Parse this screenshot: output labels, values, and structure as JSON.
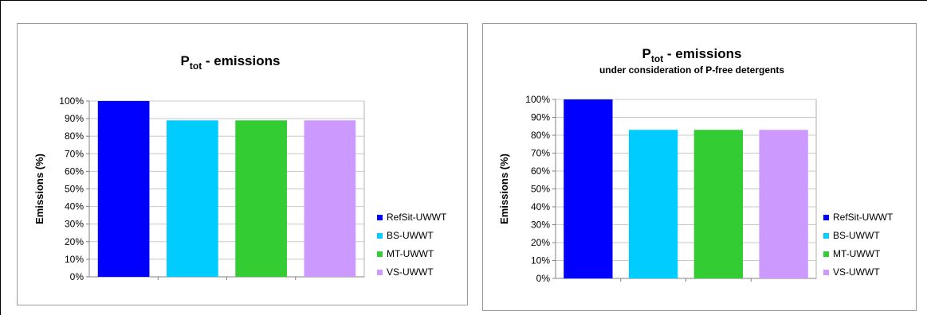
{
  "chart_data": [
    {
      "type": "bar",
      "title_main": "P",
      "title_sub": "tot",
      "title_rest": " - emissions",
      "subtitle": "",
      "ylabel": "Emissions (%)",
      "xlabel": "",
      "ylim": [
        0,
        100
      ],
      "yticks": [
        "0%",
        "10%",
        "20%",
        "30%",
        "40%",
        "50%",
        "60%",
        "70%",
        "80%",
        "90%",
        "100%"
      ],
      "grid": true,
      "legend_position": "right",
      "series": [
        {
          "name": "RefSit-UWWT",
          "value": 100,
          "color": "#0000FF"
        },
        {
          "name": "BS-UWWT",
          "value": 89,
          "color": "#00CCFF"
        },
        {
          "name": "MT-UWWT",
          "value": 89,
          "color": "#33CC33"
        },
        {
          "name": "VS-UWWT",
          "value": 89,
          "color": "#CC99FF"
        }
      ]
    },
    {
      "type": "bar",
      "title_main": "P",
      "title_sub": "tot",
      "title_rest": " - emissions",
      "subtitle": "under consideration of P-free detergents",
      "ylabel": "Emissions (%)",
      "xlabel": "",
      "ylim": [
        0,
        100
      ],
      "yticks": [
        "0%",
        "10%",
        "20%",
        "30%",
        "40%",
        "50%",
        "60%",
        "70%",
        "80%",
        "90%",
        "100%"
      ],
      "grid": true,
      "legend_position": "right",
      "series": [
        {
          "name": "RefSit-UWWT",
          "value": 100,
          "color": "#0000FF"
        },
        {
          "name": "BS-UWWT",
          "value": 83,
          "color": "#00CCFF"
        },
        {
          "name": "MT-UWWT",
          "value": 83,
          "color": "#33CC33"
        },
        {
          "name": "VS-UWWT",
          "value": 83,
          "color": "#CC99FF"
        }
      ]
    }
  ]
}
